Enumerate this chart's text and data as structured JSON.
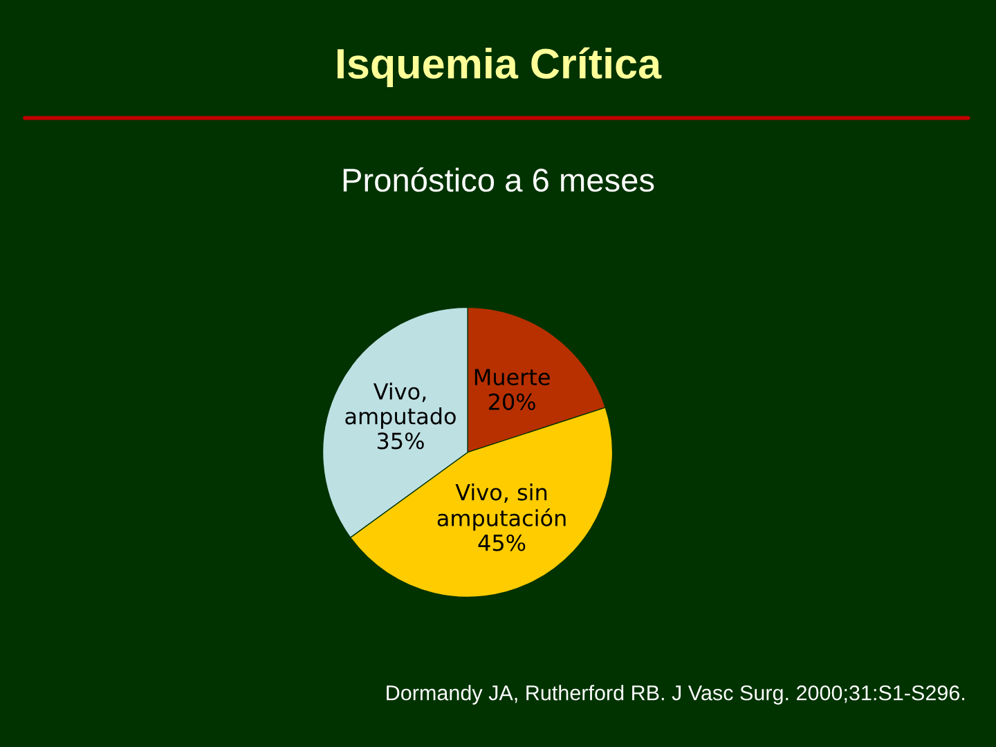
{
  "chart_data": {
    "type": "pie",
    "title": "Isquemia Crítica",
    "subtitle": "Pronóstico a 6 meses",
    "categories": [
      "Muerte",
      "Vivo, sin\namputación",
      "Vivo,\namputado"
    ],
    "values": [
      20,
      45,
      35
    ],
    "value_labels": [
      "20%",
      "45%",
      "35%"
    ],
    "colors": [
      "#b83000",
      "#ffcc00",
      "#bde0e3"
    ],
    "annotations": [
      "Dormandy JA, Rutherford RB. J Vasc Surg. 2000;31:S1-S296."
    ]
  }
}
